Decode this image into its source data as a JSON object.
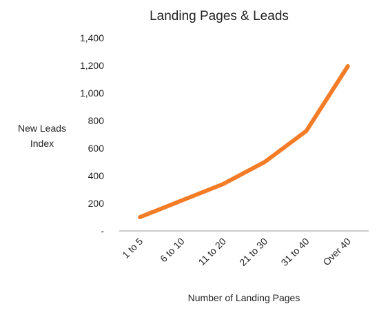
{
  "chart_data": {
    "type": "line",
    "title": "Landing Pages & Leads",
    "xlabel": "Number of Landing Pages",
    "ylabel": [
      "New Leads",
      "Index"
    ],
    "categories": [
      "1 to 5",
      "6 to 10",
      "11 to 20",
      "21 to 30",
      "31 to 40",
      "Over 40"
    ],
    "series": [
      {
        "values": [
          100,
          220,
          340,
          500,
          725,
          1195
        ],
        "color": "#f47c27"
      }
    ],
    "ylim": [
      0,
      1400
    ],
    "yticks": [
      0,
      200,
      400,
      600,
      800,
      1000,
      1200,
      1400
    ],
    "ytick_labels": [
      "-",
      "200",
      "400",
      "600",
      "800",
      "1,000",
      "1,200",
      "1,400"
    ],
    "grid": false,
    "legend": "none"
  }
}
